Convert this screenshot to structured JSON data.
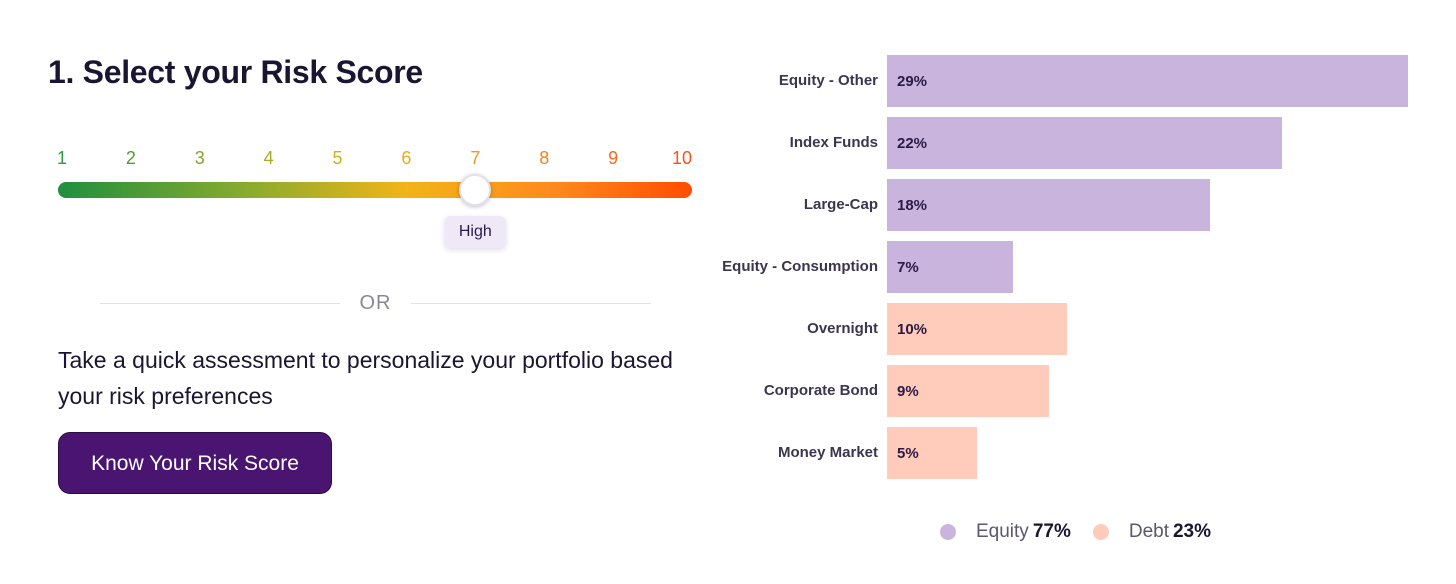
{
  "title": "1. Select your Risk Score",
  "risk_scale": {
    "numbers": [
      "1",
      "2",
      "3",
      "4",
      "5",
      "6",
      "7",
      "8",
      "9",
      "10"
    ],
    "number_colors": [
      "#2f9a3f",
      "#4f9d33",
      "#7ea52a",
      "#a3ad22",
      "#cdb21a",
      "#f0a817",
      "#f4961a",
      "#f8801a",
      "#fb681c",
      "#fb5318"
    ],
    "selected_value": 7,
    "selected_label": "High"
  },
  "divider_text": "OR",
  "assessment_text": "Take a quick assessment to personalize your portfolio based your risk preferences",
  "cta_label": "Know Your Risk Score",
  "colors": {
    "equity": "#c9b4dd",
    "debt": "#ffcbbb",
    "primary": "#4a1570"
  },
  "chart_data": {
    "type": "bar",
    "orientation": "horizontal",
    "categories": [
      "Equity - Other",
      "Index Funds",
      "Large-Cap",
      "Equity - Consumption",
      "Overnight",
      "Corporate Bond",
      "Money Market"
    ],
    "values": [
      29,
      22,
      18,
      7,
      10,
      9,
      5
    ],
    "value_labels": [
      "29%",
      "22%",
      "18%",
      "7%",
      "10%",
      "9%",
      "5%"
    ],
    "groups": [
      "equity",
      "equity",
      "equity",
      "equity",
      "debt",
      "debt",
      "debt"
    ],
    "legend": [
      {
        "name": "Equity",
        "value": "77%",
        "group": "equity"
      },
      {
        "name": "Debt",
        "value": "23%",
        "group": "debt"
      }
    ],
    "legend_position": "bottom"
  }
}
